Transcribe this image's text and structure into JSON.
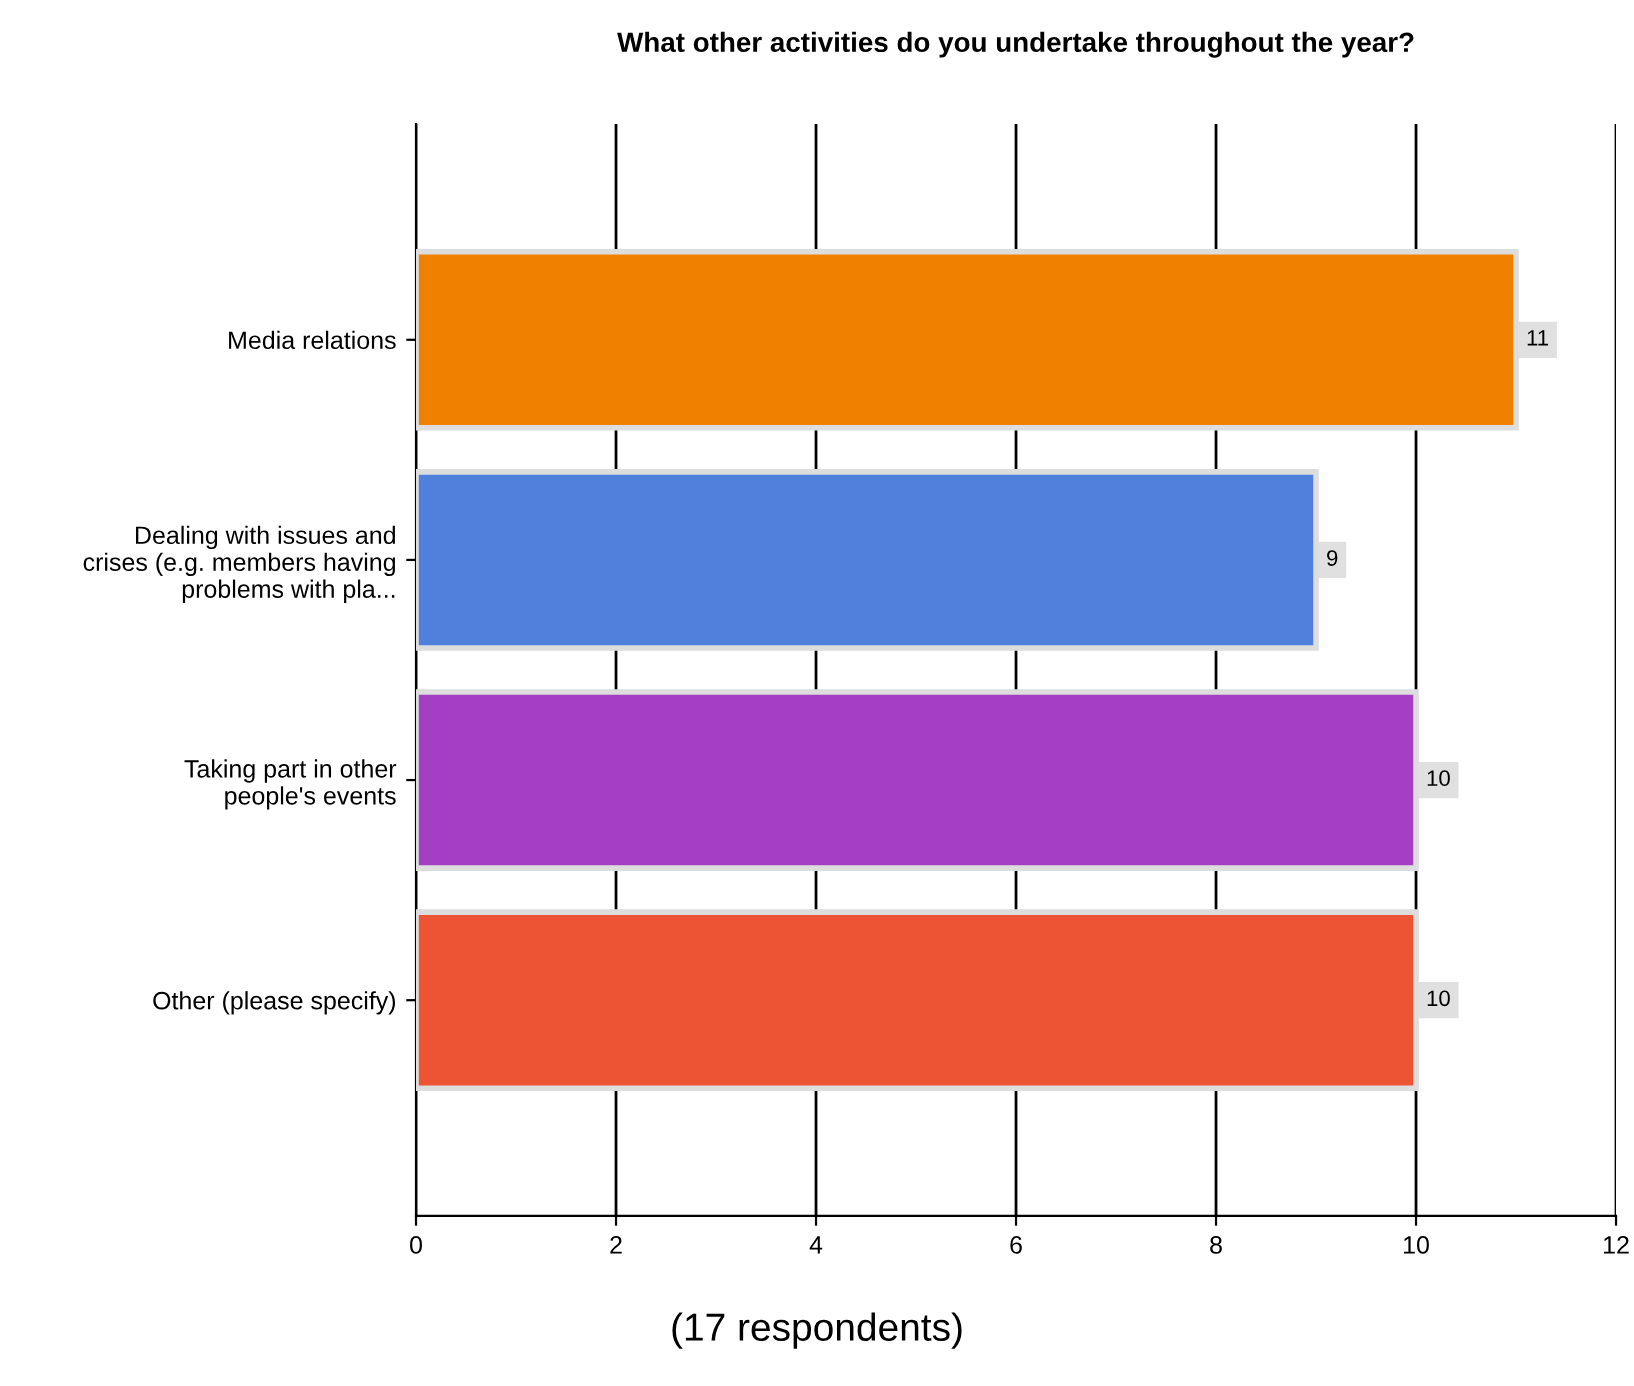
{
  "chart_data": {
    "type": "bar",
    "orientation": "horizontal",
    "title": "What other activities do you undertake throughout the year?",
    "categories": [
      "Media relations",
      "Dealing with issues and\ncrises (e.g. members having\nproblems with pla...",
      "Taking part in other\npeople's events",
      "Other (please specify)"
    ],
    "values": [
      11,
      9,
      10,
      10
    ],
    "colors": [
      "#f08000",
      "#4f80dc",
      "#a43fc4",
      "#ec5434"
    ],
    "xlim": [
      0,
      12
    ],
    "xticks": [
      0,
      2,
      4,
      6,
      8,
      10,
      12
    ],
    "grid": "x",
    "data_labels": true,
    "annotations": [
      "(17 respondents)"
    ]
  }
}
